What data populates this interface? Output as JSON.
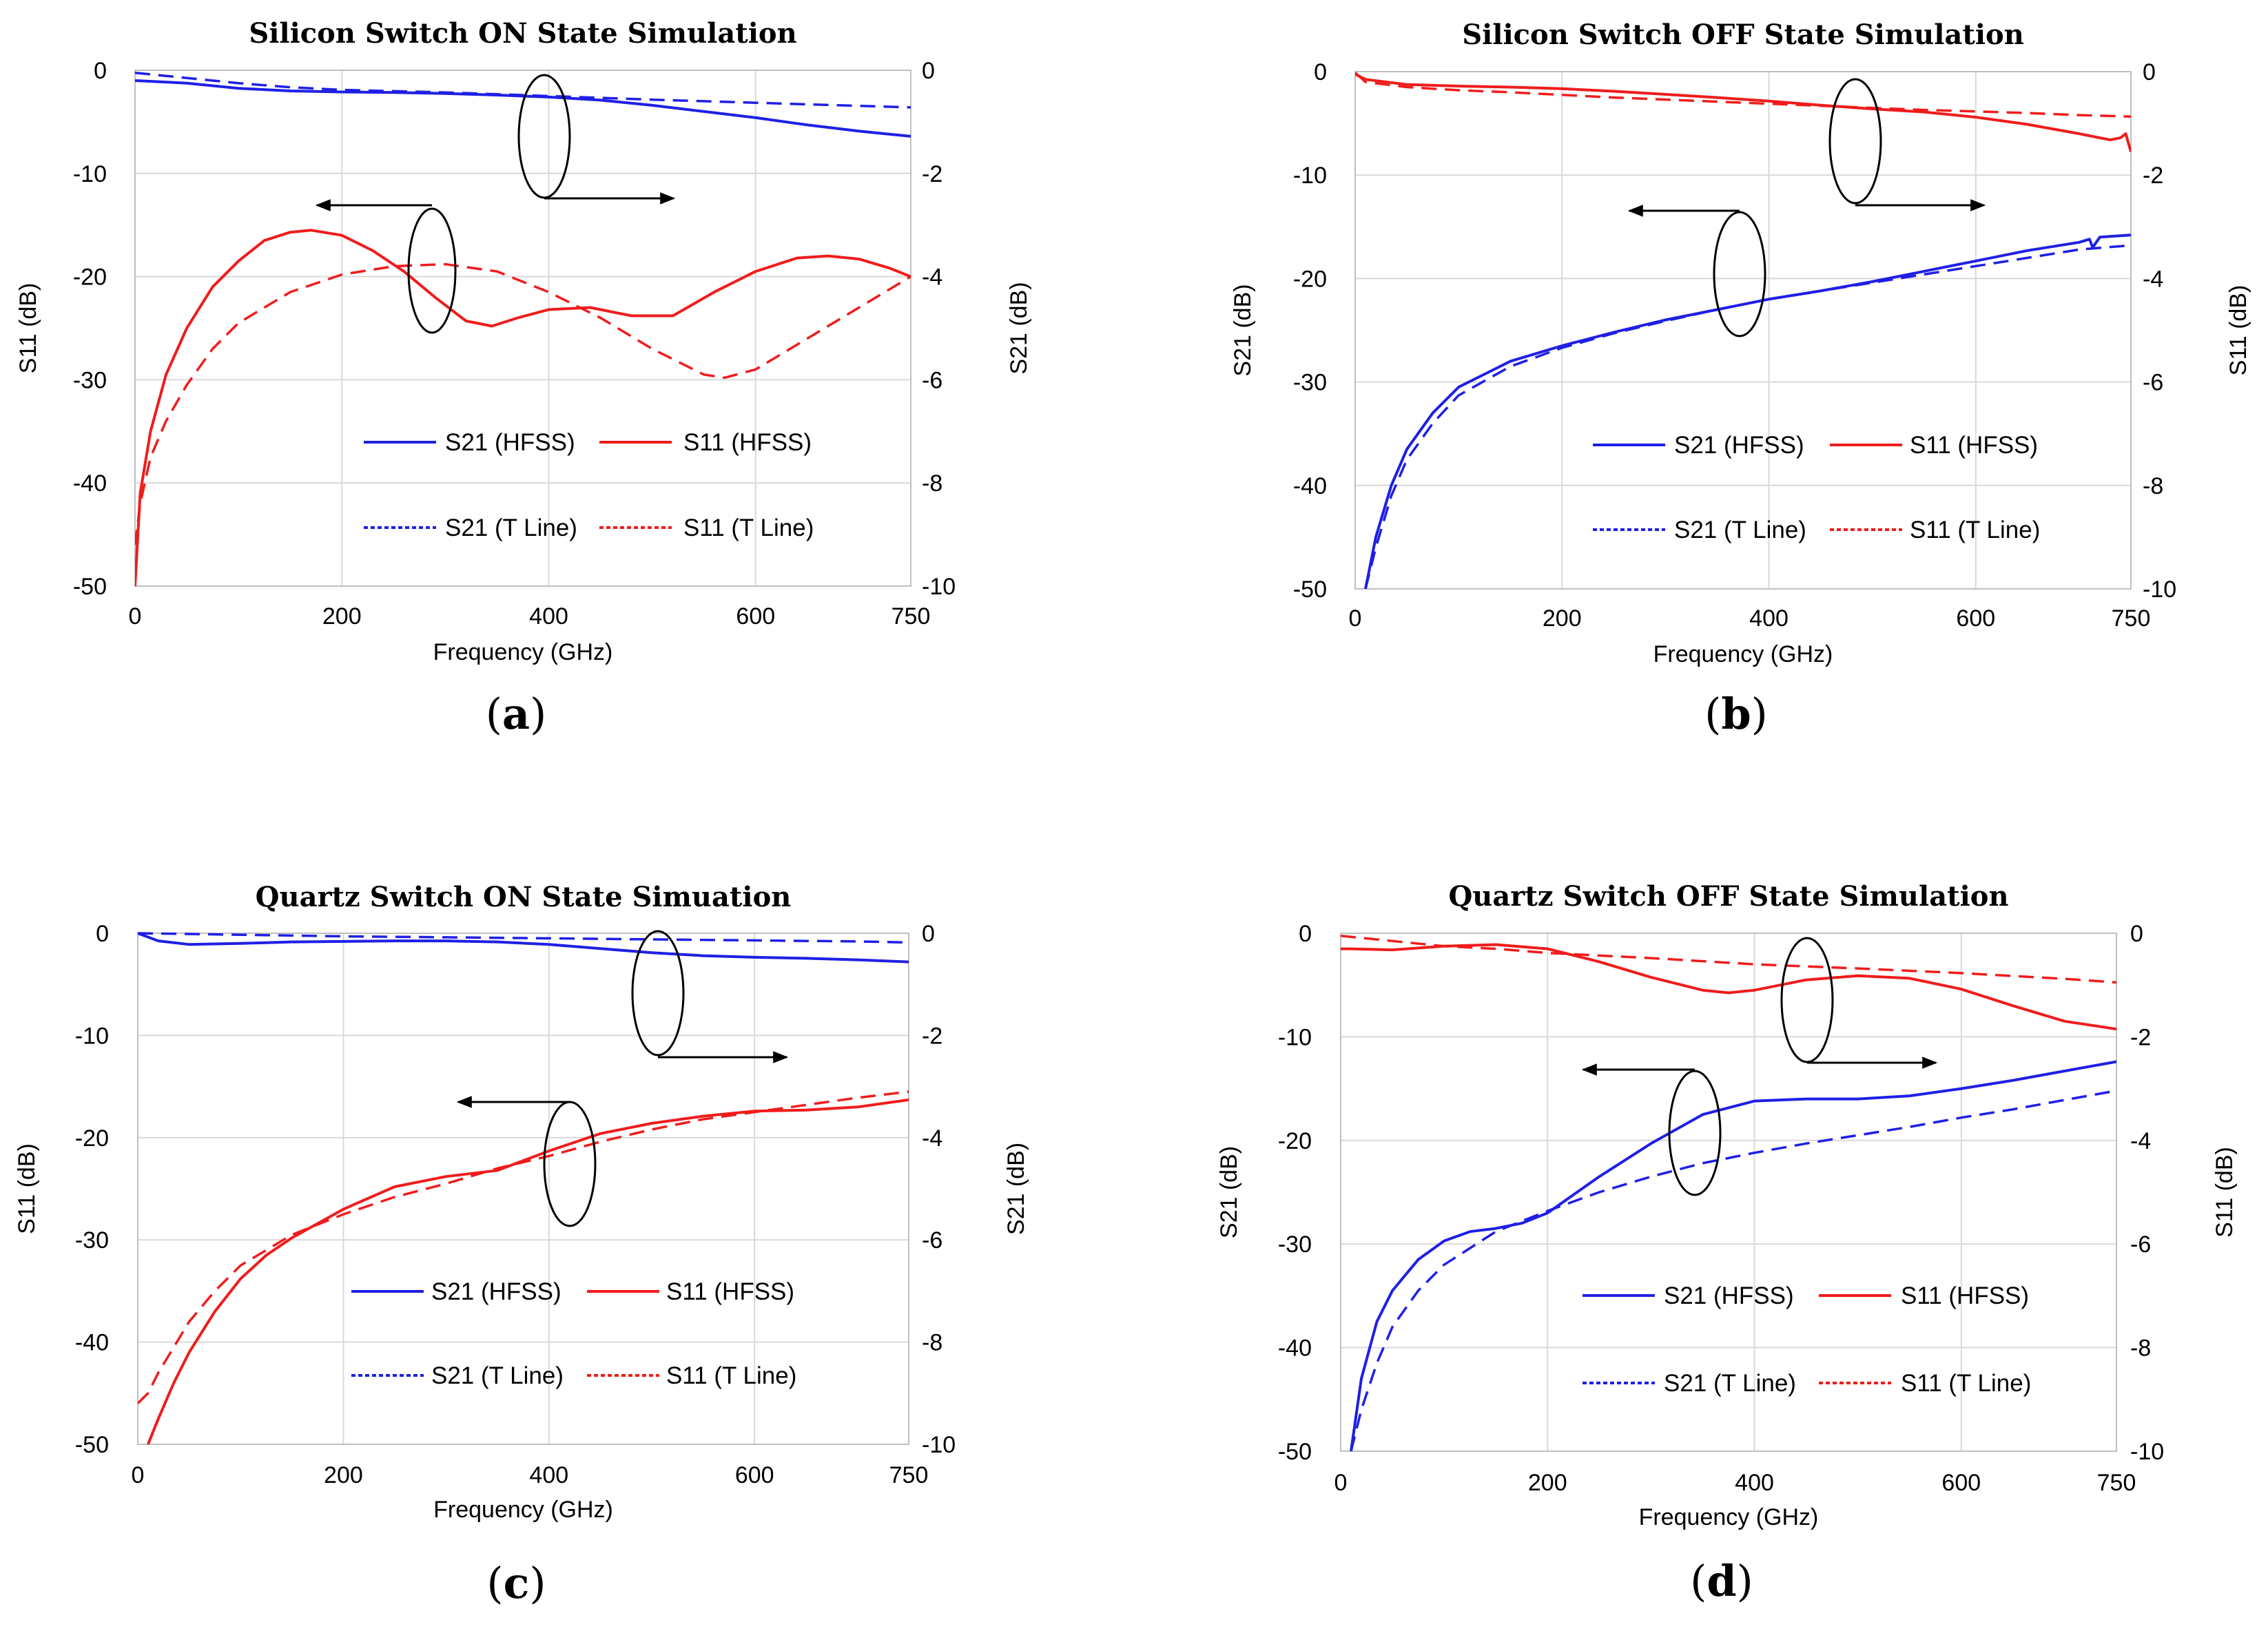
{
  "colors": {
    "s21": "#1f1fe6",
    "s11": "#f01c1c",
    "grid": "#d9d9d9",
    "frame": "#bfbfbf"
  },
  "chart_data": [
    {
      "type": "line",
      "panel_label": "a",
      "title": "Silicon Switch ON State Simulation",
      "xlabel": "Frequency (GHz)",
      "ylabel_left": "S11 (dB)",
      "ylabel_right": "S21 (dB)",
      "xlim": [
        0,
        750
      ],
      "x_ticks": [
        "0",
        "200",
        "400",
        "600",
        "750"
      ],
      "ylim_left": [
        -50,
        0
      ],
      "y_ticks_left": [
        "0",
        "-10",
        "-20",
        "-30",
        "-40",
        "-50"
      ],
      "ylim_right": [
        -10,
        0
      ],
      "y_ticks_right": [
        "0",
        "-2",
        "-4",
        "-6",
        "-8",
        "-10"
      ],
      "legend": [
        "S21 (HFSS)",
        "S11 (HFSS)",
        "S21 (T Line)",
        "S11 (T Line)"
      ],
      "series": [
        {
          "name": "S21 (HFSS)",
          "axis": "right",
          "style": "solid",
          "color": "s21",
          "x": [
            0,
            50,
            100,
            150,
            200,
            250,
            300,
            350,
            400,
            450,
            500,
            550,
            600,
            650,
            700,
            750
          ],
          "y": [
            -0.2,
            -0.25,
            -0.35,
            -0.4,
            -0.42,
            -0.43,
            -0.45,
            -0.48,
            -0.52,
            -0.58,
            -0.68,
            -0.8,
            -0.92,
            -1.06,
            -1.18,
            -1.28
          ]
        },
        {
          "name": "S21 (T Line)",
          "axis": "right",
          "style": "dashed",
          "color": "s21",
          "x": [
            0,
            50,
            100,
            150,
            200,
            300,
            400,
            500,
            600,
            700,
            750
          ],
          "y": [
            -0.05,
            -0.15,
            -0.25,
            -0.33,
            -0.38,
            -0.43,
            -0.5,
            -0.57,
            -0.63,
            -0.69,
            -0.72
          ]
        },
        {
          "name": "S11 (HFSS)",
          "axis": "left",
          "style": "solid",
          "color": "s11",
          "x": [
            0,
            5,
            15,
            30,
            50,
            75,
            100,
            125,
            150,
            170,
            200,
            230,
            260,
            290,
            320,
            345,
            370,
            400,
            440,
            480,
            520,
            560,
            600,
            640,
            670,
            700,
            730,
            750
          ],
          "y": [
            -50,
            -41,
            -35,
            -29.5,
            -25,
            -21,
            -18.5,
            -16.5,
            -15.7,
            -15.5,
            -16,
            -17.5,
            -19.5,
            -22,
            -24.3,
            -24.8,
            -24,
            -23.2,
            -23,
            -23.8,
            -23.8,
            -21.5,
            -19.5,
            -18.2,
            -18,
            -18.3,
            -19.2,
            -20
          ]
        },
        {
          "name": "S11 (T Line)",
          "axis": "left",
          "style": "dashed",
          "color": "s11",
          "x": [
            0,
            5,
            15,
            30,
            50,
            75,
            100,
            150,
            200,
            250,
            300,
            350,
            400,
            450,
            500,
            550,
            570,
            600,
            650,
            700,
            750
          ],
          "y": [
            -46,
            -42,
            -37.5,
            -34,
            -30.5,
            -27,
            -24.5,
            -21.5,
            -19.8,
            -19,
            -18.8,
            -19.5,
            -21.5,
            -24,
            -27,
            -29.5,
            -29.8,
            -29,
            -26,
            -23,
            -20
          ]
        }
      ]
    },
    {
      "type": "line",
      "panel_label": "b",
      "title": "Silicon Switch OFF State Simulation",
      "xlabel": "Frequency (GHz)",
      "ylabel_left": "S21 (dB)",
      "ylabel_right": "S11 (dB)",
      "xlim": [
        0,
        750
      ],
      "x_ticks": [
        "0",
        "200",
        "400",
        "600",
        "750"
      ],
      "ylim_left": [
        -50,
        0
      ],
      "y_ticks_left": [
        "0",
        "-10",
        "-20",
        "-30",
        "-40",
        "-50"
      ],
      "ylim_right": [
        -10,
        0
      ],
      "y_ticks_right": [
        "0",
        "-2",
        "-4",
        "-6",
        "-8",
        "-10"
      ],
      "legend": [
        "S21 (HFSS)",
        "S11 (HFSS)",
        "S21 (T Line)",
        "S11 (T Line)"
      ],
      "series": [
        {
          "name": "S21 (HFSS)",
          "axis": "left",
          "style": "solid",
          "color": "s21",
          "x": [
            10,
            20,
            35,
            50,
            75,
            100,
            150,
            200,
            250,
            300,
            350,
            400,
            450,
            500,
            550,
            600,
            650,
            700,
            710,
            713,
            720,
            750
          ],
          "y": [
            -50,
            -45,
            -40,
            -36.5,
            -33,
            -30.5,
            -28,
            -26.5,
            -25.2,
            -24,
            -23,
            -22,
            -21.2,
            -20.3,
            -19.3,
            -18.3,
            -17.3,
            -16.5,
            -16.2,
            -17,
            -16,
            -15.8
          ]
        },
        {
          "name": "S21 (T Line)",
          "axis": "left",
          "style": "dashed",
          "color": "s21",
          "x": [
            10,
            20,
            35,
            50,
            75,
            100,
            150,
            200,
            250,
            300,
            350,
            400,
            450,
            500,
            550,
            600,
            650,
            700,
            750
          ],
          "y": [
            -50,
            -46,
            -41,
            -37.5,
            -34,
            -31.3,
            -28.5,
            -26.7,
            -25.3,
            -24.1,
            -23,
            -22,
            -21.2,
            -20.4,
            -19.6,
            -18.8,
            -18,
            -17.2,
            -16.8
          ]
        },
        {
          "name": "S11 (HFSS)",
          "axis": "right",
          "style": "solid",
          "color": "s11",
          "x": [
            0,
            10,
            50,
            100,
            150,
            200,
            250,
            300,
            350,
            400,
            450,
            500,
            550,
            600,
            650,
            700,
            730,
            740,
            745,
            750
          ],
          "y": [
            -0.05,
            -0.15,
            -0.25,
            -0.28,
            -0.3,
            -0.33,
            -0.38,
            -0.44,
            -0.5,
            -0.57,
            -0.65,
            -0.72,
            -0.78,
            -0.88,
            -1.02,
            -1.2,
            -1.32,
            -1.28,
            -1.2,
            -1.55
          ]
        },
        {
          "name": "S11 (T Line)",
          "axis": "right",
          "style": "dashed",
          "color": "s11",
          "x": [
            0,
            10,
            50,
            100,
            150,
            200,
            250,
            300,
            350,
            400,
            450,
            500,
            550,
            600,
            650,
            700,
            750
          ],
          "y": [
            -0.02,
            -0.2,
            -0.3,
            -0.36,
            -0.4,
            -0.45,
            -0.5,
            -0.54,
            -0.58,
            -0.62,
            -0.66,
            -0.7,
            -0.74,
            -0.77,
            -0.8,
            -0.84,
            -0.87
          ]
        }
      ]
    },
    {
      "type": "line",
      "panel_label": "c",
      "title": "Quartz Switch ON State Simuation",
      "xlabel": "Frequency (GHz)",
      "ylabel_left": "S11 (dB)",
      "ylabel_right": "S21 (dB)",
      "xlim": [
        0,
        750
      ],
      "x_ticks": [
        "0",
        "200",
        "400",
        "600",
        "750"
      ],
      "ylim_left": [
        -50,
        0
      ],
      "y_ticks_left": [
        "0",
        "-10",
        "-20",
        "-30",
        "-40",
        "-50"
      ],
      "ylim_right": [
        -10,
        0
      ],
      "y_ticks_right": [
        "0",
        "-2",
        "-4",
        "-6",
        "-8",
        "-10"
      ],
      "legend": [
        "S21 (HFSS)",
        "S11 (HFSS)",
        "S21 (T Line)",
        "S11 (T Line)"
      ],
      "series": [
        {
          "name": "S21 (HFSS)",
          "axis": "right",
          "style": "solid",
          "color": "s21",
          "x": [
            0,
            20,
            50,
            100,
            150,
            200,
            250,
            300,
            350,
            400,
            450,
            500,
            550,
            600,
            650,
            700,
            750
          ],
          "y": [
            0,
            -0.15,
            -0.22,
            -0.2,
            -0.17,
            -0.16,
            -0.15,
            -0.15,
            -0.17,
            -0.22,
            -0.3,
            -0.38,
            -0.44,
            -0.47,
            -0.49,
            -0.52,
            -0.56
          ]
        },
        {
          "name": "S21 (T Line)",
          "axis": "right",
          "style": "dashed",
          "color": "s21",
          "x": [
            0,
            100,
            200,
            300,
            400,
            500,
            600,
            700,
            750
          ],
          "y": [
            0,
            -0.03,
            -0.06,
            -0.08,
            -0.1,
            -0.12,
            -0.14,
            -0.16,
            -0.18
          ]
        },
        {
          "name": "S11 (HFSS)",
          "axis": "left",
          "style": "solid",
          "color": "s11",
          "x": [
            10,
            20,
            35,
            50,
            75,
            100,
            125,
            150,
            200,
            250,
            300,
            350,
            400,
            450,
            500,
            550,
            600,
            650,
            700,
            750
          ],
          "y": [
            -50,
            -47.5,
            -44,
            -41,
            -37,
            -33.8,
            -31.5,
            -29.8,
            -27,
            -24.8,
            -23.8,
            -23.2,
            -21.3,
            -19.6,
            -18.6,
            -17.9,
            -17.4,
            -17.3,
            -17,
            -16.3
          ]
        },
        {
          "name": "S11 (T Line)",
          "axis": "left",
          "style": "dashed",
          "color": "s11",
          "x": [
            0,
            10,
            20,
            35,
            50,
            75,
            100,
            150,
            200,
            250,
            300,
            350,
            400,
            450,
            500,
            550,
            600,
            650,
            700,
            750
          ],
          "y": [
            -46,
            -45,
            -43,
            -40.5,
            -38,
            -35,
            -32.5,
            -29.5,
            -27.5,
            -25.8,
            -24.5,
            -23,
            -21.8,
            -20.4,
            -19.2,
            -18.2,
            -17.5,
            -16.8,
            -16.1,
            -15.5
          ]
        }
      ]
    },
    {
      "type": "line",
      "panel_label": "d",
      "title": "Quartz Switch OFF State Simulation",
      "xlabel": "Frequency (GHz)",
      "ylabel_left": "S21 (dB)",
      "ylabel_right": "S11 (dB)",
      "xlim": [
        0,
        750
      ],
      "x_ticks": [
        "0",
        "200",
        "400",
        "600",
        "750"
      ],
      "ylim_left": [
        -50,
        0
      ],
      "y_ticks_left": [
        "0",
        "-10",
        "-20",
        "-30",
        "-40",
        "-50"
      ],
      "ylim_right": [
        -10,
        0
      ],
      "y_ticks_right": [
        "0",
        "-2",
        "-4",
        "-6",
        "-8",
        "-10"
      ],
      "legend": [
        "S21 (HFSS)",
        "S11 (HFSS)",
        "S21 (T Line)",
        "S11 (T Line)"
      ],
      "series": [
        {
          "name": "S21 (HFSS)",
          "axis": "left",
          "style": "solid",
          "color": "s21",
          "x": [
            10,
            20,
            35,
            50,
            75,
            100,
            125,
            150,
            175,
            200,
            250,
            300,
            350,
            400,
            450,
            500,
            550,
            600,
            650,
            700,
            750
          ],
          "y": [
            -50,
            -43,
            -37.5,
            -34.5,
            -31.5,
            -29.7,
            -28.8,
            -28.5,
            -28,
            -27,
            -23.5,
            -20.3,
            -17.5,
            -16.2,
            -16,
            -16,
            -15.7,
            -15,
            -14.2,
            -13.3,
            -12.4
          ]
        },
        {
          "name": "S21 (T Line)",
          "axis": "left",
          "style": "dashed",
          "color": "s21",
          "x": [
            10,
            20,
            35,
            50,
            75,
            100,
            150,
            200,
            250,
            300,
            350,
            400,
            450,
            500,
            550,
            600,
            650,
            700,
            750
          ],
          "y": [
            -50,
            -46,
            -41.5,
            -38,
            -34.5,
            -32,
            -28.8,
            -26.8,
            -25,
            -23.5,
            -22.2,
            -21.2,
            -20.3,
            -19.5,
            -18.7,
            -17.8,
            -17,
            -16.1,
            -15.2
          ]
        },
        {
          "name": "S11 (HFSS)",
          "axis": "right",
          "style": "solid",
          "color": "s11",
          "x": [
            0,
            10,
            50,
            100,
            150,
            200,
            250,
            300,
            350,
            375,
            400,
            450,
            500,
            550,
            600,
            650,
            700,
            750
          ],
          "y": [
            -0.3,
            -0.3,
            -0.32,
            -0.25,
            -0.22,
            -0.3,
            -0.55,
            -0.85,
            -1.1,
            -1.15,
            -1.1,
            -0.9,
            -0.82,
            -0.87,
            -1.08,
            -1.4,
            -1.7,
            -1.85
          ]
        },
        {
          "name": "S11 (T Line)",
          "axis": "right",
          "style": "dashed",
          "color": "s11",
          "x": [
            0,
            50,
            100,
            150,
            200,
            300,
            400,
            500,
            600,
            700,
            750
          ],
          "y": [
            -0.05,
            -0.15,
            -0.25,
            -0.3,
            -0.38,
            -0.48,
            -0.6,
            -0.68,
            -0.77,
            -0.88,
            -0.95
          ]
        }
      ]
    }
  ]
}
